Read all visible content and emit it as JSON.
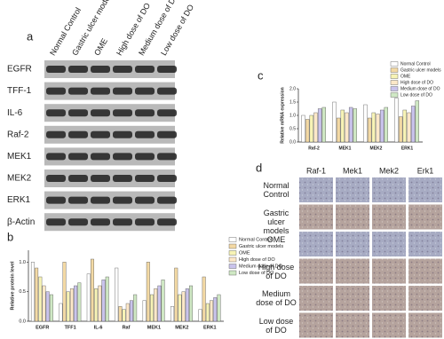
{
  "panel_labels": [
    "a",
    "b",
    "c",
    "d"
  ],
  "blot": {
    "lanes": [
      "Normal Control",
      "Gastric ulcer models",
      "OME",
      "High dose of DO",
      "Medium dose of DO",
      "Low dose of DO"
    ],
    "rows": [
      "EGFR",
      "TFF-1",
      "IL-6",
      "Raf-2",
      "MEK1",
      "MEK2",
      "ERK1",
      "β-Actin"
    ]
  },
  "chart_data": [
    {
      "type": "bar",
      "ylabel": "Relative protein level",
      "categories": [
        "EGFR",
        "TFF1",
        "IL-6",
        "Raf",
        "MEK1",
        "MEK2",
        "ERK1"
      ],
      "series": [
        {
          "name": "Normal Control",
          "color": "#ffffff",
          "values": [
            1.0,
            0.3,
            0.8,
            0.9,
            0.35,
            0.25,
            0.2
          ]
        },
        {
          "name": "Gastric ulcer models",
          "color": "#f3d9a4",
          "values": [
            0.9,
            1.0,
            1.05,
            0.25,
            1.0,
            0.9,
            0.75
          ]
        },
        {
          "name": "OME",
          "color": "#f7f3b5",
          "values": [
            0.75,
            0.5,
            0.55,
            0.2,
            0.45,
            0.45,
            0.3
          ]
        },
        {
          "name": "High dose of DO",
          "color": "#fde8c8",
          "values": [
            0.6,
            0.55,
            0.6,
            0.3,
            0.55,
            0.5,
            0.35
          ]
        },
        {
          "name": "Medium dose of DO",
          "color": "#c9c3ec",
          "values": [
            0.5,
            0.6,
            0.7,
            0.35,
            0.6,
            0.55,
            0.4
          ]
        },
        {
          "name": "Low dose of DO",
          "color": "#cfe8c4",
          "values": [
            0.45,
            0.65,
            0.75,
            0.45,
            0.7,
            0.6,
            0.45
          ]
        }
      ],
      "ylim": [
        0,
        1.2
      ],
      "yticks": [
        {
          "value": 0,
          "label": "0.0"
        },
        {
          "value": 0.5,
          "label": "0.5"
        },
        {
          "value": 1,
          "label": "1.0"
        }
      ]
    },
    {
      "type": "bar",
      "ylabel": "Relative mRNA expression",
      "categories": [
        "Raf-2",
        "MEK1",
        "MEK2",
        "ERK1"
      ],
      "series": [
        {
          "name": "Normal Control",
          "color": "#ffffff",
          "values": [
            1.0,
            1.5,
            1.4,
            1.65
          ]
        },
        {
          "name": "Gastric ulcer models",
          "color": "#f3d9a4",
          "values": [
            0.85,
            0.9,
            0.9,
            0.95
          ]
        },
        {
          "name": "OME",
          "color": "#f7f3b5",
          "values": [
            1.0,
            1.2,
            1.1,
            1.2
          ]
        },
        {
          "name": "High dose of DO",
          "color": "#fde8c8",
          "values": [
            1.1,
            1.1,
            1.05,
            1.1
          ]
        },
        {
          "name": "Medium dose of DO",
          "color": "#c9c3ec",
          "values": [
            1.25,
            1.3,
            1.2,
            1.35
          ]
        },
        {
          "name": "Low dose of DO",
          "color": "#cfe8c4",
          "values": [
            1.3,
            1.25,
            1.3,
            1.55
          ]
        }
      ],
      "ylim": [
        0,
        2
      ],
      "yticks": [
        {
          "value": 0,
          "label": "0.0"
        },
        {
          "value": 0.5,
          "label": "0.5"
        },
        {
          "value": 1,
          "label": "1.0"
        },
        {
          "value": 1.5,
          "label": "1.5"
        },
        {
          "value": 2,
          "label": "2.0"
        }
      ]
    }
  ],
  "histology": {
    "columns": [
      "Raf-1",
      "Mek1",
      "Mek2",
      "Erk1"
    ],
    "rows": [
      "Normal Control",
      "Gastric ulcer models",
      "OME",
      "High dose of DO",
      "Medium dose of DO",
      "Low dose of DO"
    ]
  }
}
